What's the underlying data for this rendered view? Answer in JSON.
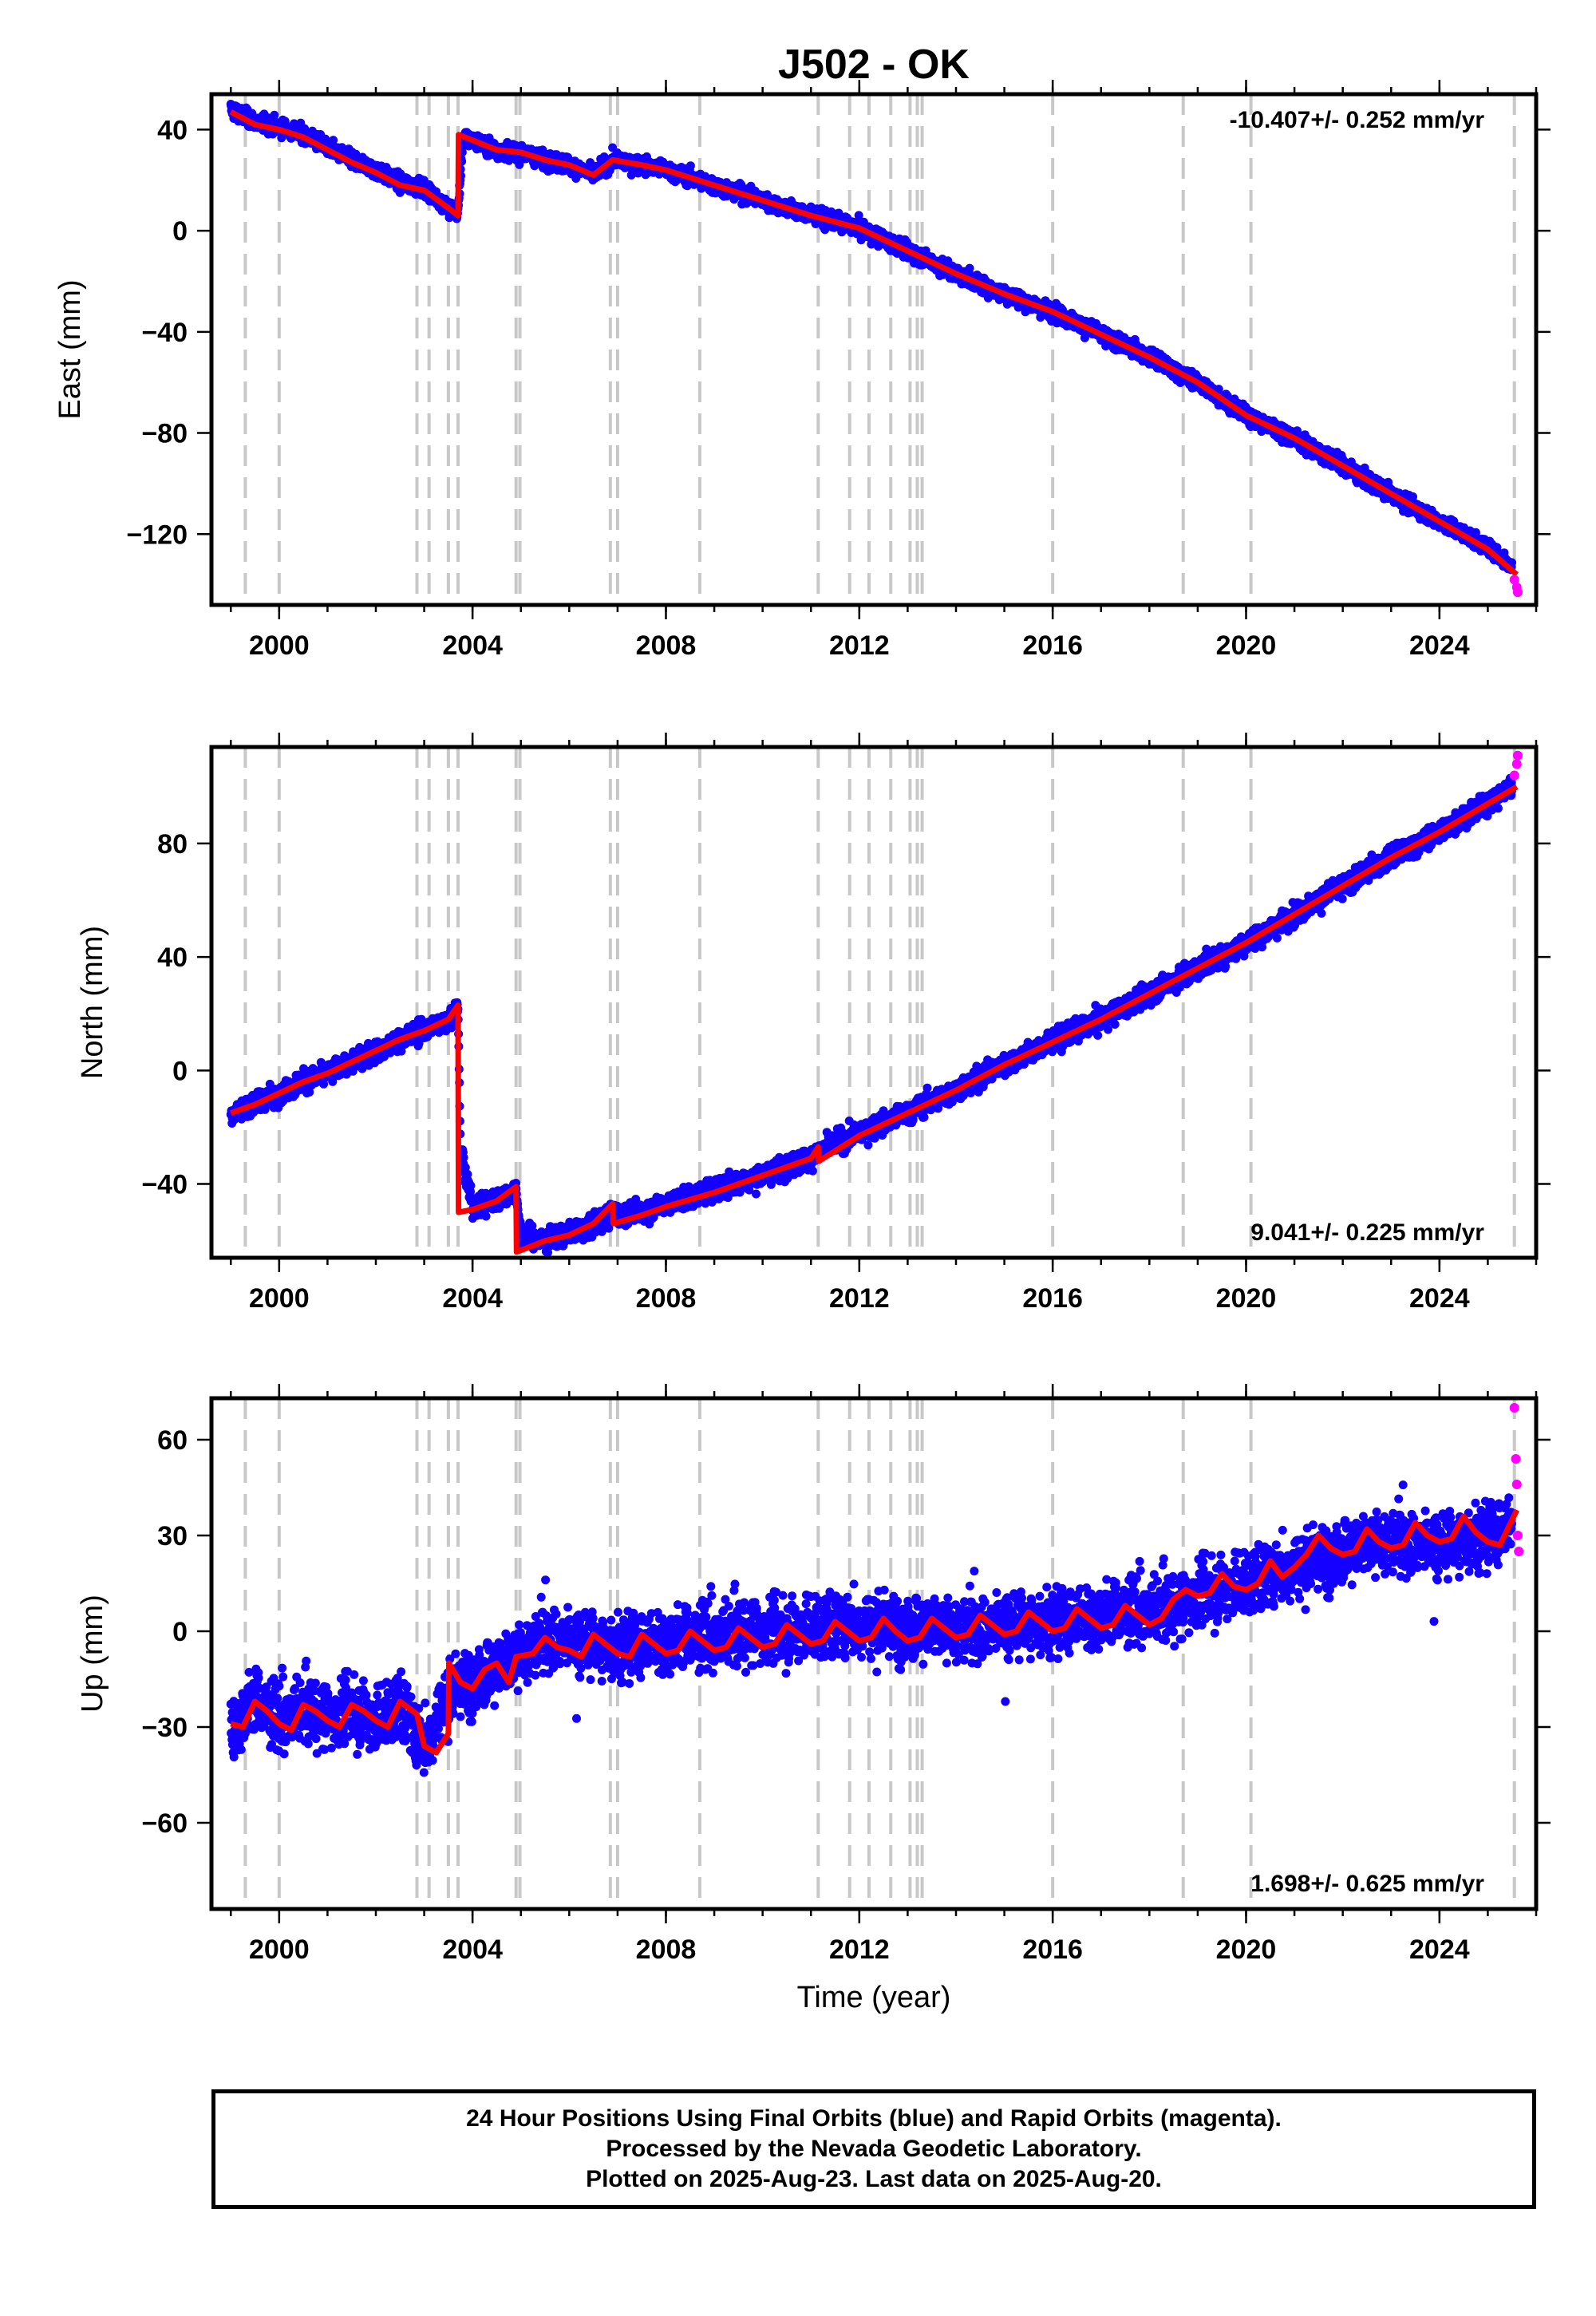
{
  "title": "J502 - OK",
  "xlabel": "Time (year)",
  "x_ticks": [
    2000,
    2004,
    2008,
    2012,
    2016,
    2020,
    2024
  ],
  "xlim": [
    1998.6,
    2026.0
  ],
  "event_years": [
    1999.3,
    2000.0,
    2002.85,
    2003.1,
    2003.5,
    2003.7,
    2004.9,
    2004.98,
    2006.85,
    2007.0,
    2008.7,
    2011.15,
    2011.8,
    2012.2,
    2012.65,
    2013.05,
    2013.2,
    2013.3,
    2016.0,
    2018.7,
    2020.1,
    2025.55
  ],
  "colors": {
    "final": "#1400ff",
    "rapid": "#ff00ff",
    "model": "#ff0000",
    "events": "#c8c8c8"
  },
  "chart_data": [
    {
      "type": "scatter",
      "ylabel": "East (mm)",
      "ylim": [
        -148,
        54
      ],
      "y_ticks": [
        40,
        0,
        -40,
        -80,
        -120
      ],
      "y_tick_labels": [
        "40",
        "0",
        "−40",
        "−80",
        "−120"
      ],
      "rate_text": "-10.407+/- 0.252 mm/yr",
      "rate_position": "top-right",
      "series": [
        {
          "name": "Final Orbits (blue)",
          "x": [
            1999.0,
            1999.5,
            2000.0,
            2000.5,
            2001.0,
            2001.5,
            2002.0,
            2002.5,
            2003.0,
            2003.5,
            2003.7,
            2003.8,
            2004.5,
            2005.0,
            2005.5,
            2006.0,
            2006.5,
            2006.9,
            2007.5,
            2008.0,
            2008.5,
            2009.0,
            2010.0,
            2011.0,
            2012.0,
            2013.0,
            2014.0,
            2015.0,
            2016.0,
            2017.0,
            2018.0,
            2019.0,
            2020.0,
            2021.0,
            2022.0,
            2023.0,
            2024.0,
            2025.0,
            2025.5
          ],
          "y": [
            48,
            43,
            41,
            38,
            33,
            28,
            24,
            19,
            17,
            9,
            7,
            37,
            32,
            31,
            28,
            26,
            22,
            28,
            26,
            24,
            21,
            18,
            12,
            6,
            1,
            -8,
            -17,
            -25,
            -32,
            -41,
            -50,
            -60,
            -73,
            -82,
            -93,
            -104,
            -115,
            -125,
            -133
          ]
        },
        {
          "name": "Rapid Orbits (magenta)",
          "x": [
            2025.55,
            2025.6,
            2025.62
          ],
          "y": [
            -138,
            -141,
            -143
          ]
        },
        {
          "name": "Model",
          "x": [
            1999.0,
            1999.5,
            2000.0,
            2000.5,
            2001.0,
            2001.5,
            2002.0,
            2002.5,
            2003.0,
            2003.5,
            2003.7,
            2003.71,
            2004.5,
            2005.0,
            2005.5,
            2006.0,
            2006.5,
            2006.9,
            2007.5,
            2008.0,
            2008.5,
            2009.0,
            2010.0,
            2011.0,
            2012.0,
            2013.0,
            2014.0,
            2015.0,
            2016.0,
            2017.0,
            2018.0,
            2019.0,
            2020.0,
            2021.0,
            2022.0,
            2023.0,
            2024.0,
            2025.0,
            2025.6
          ],
          "y": [
            47,
            42,
            40,
            37,
            32,
            27,
            23,
            18,
            16,
            9,
            6,
            38,
            32,
            31,
            28,
            26,
            22,
            28,
            26,
            24,
            21,
            18,
            12,
            6,
            1,
            -8,
            -17,
            -25,
            -32,
            -41,
            -50,
            -60,
            -73,
            -82,
            -93,
            -104,
            -115,
            -126,
            -136
          ]
        }
      ]
    },
    {
      "type": "scatter",
      "ylabel": "North (mm)",
      "ylim": [
        -66,
        114
      ],
      "y_ticks": [
        80,
        40,
        0,
        -40
      ],
      "y_tick_labels": [
        "80",
        "40",
        "0",
        "−40"
      ],
      "rate_text": "9.041+/- 0.225 mm/yr",
      "rate_position": "bottom-right",
      "series": [
        {
          "name": "Final Orbits (blue)",
          "x": [
            1999.0,
            1999.5,
            2000.0,
            2000.5,
            2001.0,
            2001.5,
            2002.0,
            2002.5,
            2003.0,
            2003.5,
            2003.7,
            2003.75,
            2004.0,
            2004.5,
            2004.9,
            2005.0,
            2005.5,
            2006.0,
            2006.5,
            2006.9,
            2007.5,
            2008.0,
            2009.0,
            2010.0,
            2011.0,
            2011.2,
            2012.0,
            2013.0,
            2014.0,
            2015.0,
            2016.0,
            2017.0,
            2018.0,
            2019.0,
            2020.0,
            2021.0,
            2022.0,
            2023.0,
            2024.0,
            2025.0,
            2025.5
          ],
          "y": [
            -15,
            -12,
            -8,
            -4,
            -1,
            3,
            7,
            11,
            14,
            18,
            22,
            -28,
            -48,
            -46,
            -42,
            -58,
            -60,
            -57,
            -55,
            -50,
            -50,
            -47,
            -42,
            -37,
            -31,
            -28,
            -22,
            -15,
            -7,
            2,
            10,
            18,
            27,
            36,
            45,
            55,
            65,
            75,
            84,
            94,
            100
          ]
        },
        {
          "name": "Rapid Orbits (magenta)",
          "x": [
            2025.55,
            2025.6,
            2025.62
          ],
          "y": [
            104,
            108,
            111
          ]
        },
        {
          "name": "Model",
          "x": [
            1999.0,
            1999.5,
            2000.0,
            2000.5,
            2001.0,
            2001.5,
            2002.0,
            2002.5,
            2003.0,
            2003.5,
            2003.7,
            2003.71,
            2004.0,
            2004.5,
            2004.9,
            2004.91,
            2005.5,
            2006.0,
            2006.5,
            2006.9,
            2006.91,
            2007.5,
            2008.0,
            2009.0,
            2010.0,
            2011.0,
            2011.15,
            2011.16,
            2012.0,
            2013.0,
            2014.0,
            2015.0,
            2016.0,
            2017.0,
            2018.0,
            2019.0,
            2020.0,
            2021.0,
            2022.0,
            2023.0,
            2024.0,
            2025.0,
            2025.6
          ],
          "y": [
            -15,
            -12,
            -8,
            -4,
            -1,
            3,
            7,
            11,
            14,
            18,
            23,
            -50,
            -49,
            -46,
            -41,
            -64,
            -60,
            -58,
            -54,
            -47,
            -54,
            -51,
            -48,
            -43,
            -37,
            -31,
            -27,
            -32,
            -23,
            -15,
            -7,
            2,
            10,
            18,
            27,
            36,
            45,
            55,
            65,
            75,
            84,
            94,
            100
          ]
        }
      ]
    },
    {
      "type": "scatter",
      "xlabel": "Time (year)",
      "ylabel": "Up (mm)",
      "ylim": [
        -87,
        73
      ],
      "y_ticks": [
        60,
        30,
        0,
        -30,
        -60
      ],
      "y_tick_labels": [
        "60",
        "30",
        "0",
        "−30",
        "−60"
      ],
      "rate_text": "1.698+/- 0.625 mm/yr",
      "rate_position": "bottom-right",
      "series": [
        {
          "name": "Final Orbits (blue)",
          "x": [
            1999.0,
            1999.5,
            2000.0,
            2000.5,
            2001.0,
            2001.5,
            2002.0,
            2002.5,
            2003.0,
            2003.5,
            2004.0,
            2004.5,
            2005.0,
            2005.5,
            2006.0,
            2007.0,
            2008.0,
            2009.0,
            2010.0,
            2011.0,
            2012.0,
            2013.0,
            2014.0,
            2015.0,
            2016.0,
            2017.0,
            2018.0,
            2018.7,
            2019.0,
            2020.0,
            2021.0,
            2022.0,
            2023.0,
            2024.0,
            2025.0,
            2025.5
          ],
          "y": [
            -30,
            -22,
            -28,
            -25,
            -27,
            -24,
            -28,
            -23,
            -36,
            -20,
            -15,
            -12,
            -8,
            -2,
            -3,
            -5,
            -3,
            -2,
            0,
            1,
            2,
            1,
            0,
            2,
            3,
            5,
            6,
            8,
            12,
            15,
            20,
            25,
            28,
            27,
            30,
            33
          ]
        },
        {
          "name": "Rapid Orbits (magenta)",
          "x": [
            2025.55,
            2025.58,
            2025.6,
            2025.62,
            2025.64
          ],
          "y": [
            70,
            54,
            46,
            30,
            25
          ]
        },
        {
          "name": "Model",
          "x": [
            1999.0,
            1999.25,
            1999.5,
            1999.75,
            2000.0,
            2000.25,
            2000.5,
            2000.75,
            2001.0,
            2001.25,
            2001.5,
            2001.75,
            2002.0,
            2002.25,
            2002.5,
            2002.85,
            2003.0,
            2003.25,
            2003.5,
            2003.51,
            2003.75,
            2004.0,
            2004.25,
            2004.5,
            2004.75,
            2004.9,
            2005.25,
            2005.5,
            2005.75,
            2006.0,
            2006.25,
            2006.5,
            2006.75,
            2007.0,
            2007.25,
            2007.5,
            2007.75,
            2008.0,
            2008.25,
            2008.5,
            2008.75,
            2009.0,
            2009.25,
            2009.5,
            2009.75,
            2010.0,
            2010.25,
            2010.5,
            2010.75,
            2011.0,
            2011.25,
            2011.5,
            2011.75,
            2012.0,
            2012.25,
            2012.5,
            2012.75,
            2013.0,
            2013.25,
            2013.5,
            2013.75,
            2014.0,
            2014.25,
            2014.5,
            2014.75,
            2015.0,
            2015.25,
            2015.5,
            2015.75,
            2016.0,
            2016.25,
            2016.5,
            2016.75,
            2017.0,
            2017.25,
            2017.5,
            2017.75,
            2018.0,
            2018.25,
            2018.5,
            2018.75,
            2019.0,
            2019.25,
            2019.5,
            2019.75,
            2020.0,
            2020.25,
            2020.5,
            2020.75,
            2021.0,
            2021.25,
            2021.5,
            2021.75,
            2022.0,
            2022.25,
            2022.5,
            2022.75,
            2023.0,
            2023.25,
            2023.5,
            2023.75,
            2024.0,
            2024.25,
            2024.5,
            2024.75,
            2025.0,
            2025.25,
            2025.6
          ],
          "y": [
            -29,
            -30,
            -22,
            -25,
            -29,
            -31,
            -23,
            -25,
            -28,
            -30,
            -23,
            -25,
            -28,
            -30,
            -22,
            -26,
            -36,
            -38,
            -32,
            -10,
            -16,
            -18,
            -12,
            -10,
            -16,
            -8,
            -7,
            -2,
            -5,
            -6,
            -8,
            -1,
            -4,
            -7,
            -8,
            -1,
            -4,
            -7,
            -6,
            0,
            -3,
            -6,
            -5,
            1,
            -2,
            -5,
            -4,
            2,
            -1,
            -4,
            -3,
            3,
            0,
            -3,
            -2,
            4,
            0,
            -3,
            -2,
            4,
            1,
            -2,
            -1,
            5,
            2,
            -1,
            0,
            6,
            3,
            0,
            1,
            7,
            4,
            1,
            2,
            8,
            5,
            2,
            4,
            10,
            13,
            11,
            12,
            18,
            14,
            13,
            15,
            22,
            17,
            20,
            24,
            30,
            26,
            24,
            25,
            32,
            28,
            26,
            27,
            34,
            30,
            28,
            29,
            36,
            31,
            28,
            27,
            38
          ]
        }
      ]
    }
  ],
  "caption": {
    "line1": "24 Hour Positions Using Final Orbits (blue) and Rapid Orbits (magenta).",
    "line2": "Processed by the Nevada Geodetic Laboratory.",
    "line3": "Plotted on 2025-Aug-23. Last data on 2025-Aug-20."
  }
}
